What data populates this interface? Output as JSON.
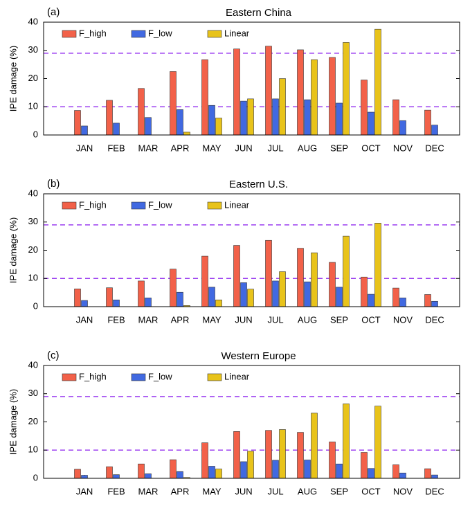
{
  "chart_data": [
    {
      "type": "bar",
      "label": "(a)",
      "title": "Eastern China",
      "ylabel": "IPE damage (%)",
      "categories": [
        "JAN",
        "FEB",
        "MAR",
        "APR",
        "MAY",
        "JUN",
        "JUL",
        "AUG",
        "SEP",
        "OCT",
        "NOV",
        "DEC"
      ],
      "series": [
        {
          "name": "F_high",
          "color": "#f26149",
          "values": [
            8.7,
            12.3,
            16.5,
            22.5,
            26.7,
            30.5,
            31.5,
            30.2,
            27.5,
            19.5,
            12.5,
            8.8
          ]
        },
        {
          "name": "F_low",
          "color": "#4169e1",
          "values": [
            3.2,
            4.2,
            6.2,
            9.0,
            10.5,
            12.0,
            12.8,
            12.5,
            11.3,
            8.1,
            5.1,
            3.5
          ]
        },
        {
          "name": "Linear",
          "color": "#e8c31a",
          "values": [
            null,
            null,
            null,
            1.0,
            6.0,
            12.8,
            20.0,
            26.7,
            32.8,
            37.5,
            null,
            null
          ]
        }
      ],
      "ylim": [
        0,
        40
      ],
      "yticks": [
        0,
        10,
        20,
        30,
        40
      ],
      "reference_lines": [
        29,
        10
      ],
      "reference_color": "#9b3df0",
      "legend": "upper left"
    },
    {
      "type": "bar",
      "label": "(b)",
      "title": "Eastern U.S.",
      "ylabel": "IPE damage (%)",
      "categories": [
        "JAN",
        "FEB",
        "MAR",
        "APR",
        "MAY",
        "JUN",
        "JUL",
        "AUG",
        "SEP",
        "OCT",
        "NOV",
        "DEC"
      ],
      "series": [
        {
          "name": "F_high",
          "color": "#f26149",
          "values": [
            6.3,
            6.7,
            9.1,
            13.3,
            17.9,
            21.7,
            23.5,
            20.7,
            15.7,
            10.5,
            6.6,
            4.3
          ]
        },
        {
          "name": "F_low",
          "color": "#4169e1",
          "values": [
            2.2,
            2.4,
            3.1,
            5.1,
            6.9,
            8.5,
            9.1,
            8.8,
            6.9,
            4.4,
            3.1,
            1.9
          ]
        },
        {
          "name": "Linear",
          "color": "#e8c31a",
          "values": [
            null,
            null,
            null,
            0.4,
            2.4,
            6.2,
            12.4,
            19.1,
            25.0,
            29.6,
            null,
            null
          ]
        }
      ],
      "ylim": [
        0,
        40
      ],
      "yticks": [
        0,
        10,
        20,
        30,
        40
      ],
      "reference_lines": [
        29,
        10
      ],
      "reference_color": "#9b3df0",
      "legend": "upper left"
    },
    {
      "type": "bar",
      "label": "(c)",
      "title": "Western Europe",
      "ylabel": "IPE damage (%)",
      "categories": [
        "JAN",
        "FEB",
        "MAR",
        "APR",
        "MAY",
        "JUN",
        "JUL",
        "AUG",
        "SEP",
        "OCT",
        "NOV",
        "DEC"
      ],
      "series": [
        {
          "name": "F_high",
          "color": "#f26149",
          "values": [
            3.2,
            4.1,
            5.1,
            6.6,
            12.6,
            16.6,
            17.0,
            16.3,
            12.9,
            9.2,
            4.8,
            3.4
          ]
        },
        {
          "name": "F_low",
          "color": "#4169e1",
          "values": [
            1.1,
            1.3,
            1.6,
            2.4,
            4.3,
            5.9,
            6.4,
            6.5,
            5.1,
            3.5,
            1.9,
            1.2
          ]
        },
        {
          "name": "Linear",
          "color": "#e8c31a",
          "values": [
            null,
            null,
            null,
            0.3,
            3.3,
            9.6,
            17.3,
            23.1,
            26.4,
            25.6,
            null,
            null
          ]
        }
      ],
      "ylim": [
        0,
        40
      ],
      "yticks": [
        0,
        10,
        20,
        30,
        40
      ],
      "reference_lines": [
        29,
        10
      ],
      "reference_color": "#9b3df0",
      "legend": "upper left"
    }
  ]
}
